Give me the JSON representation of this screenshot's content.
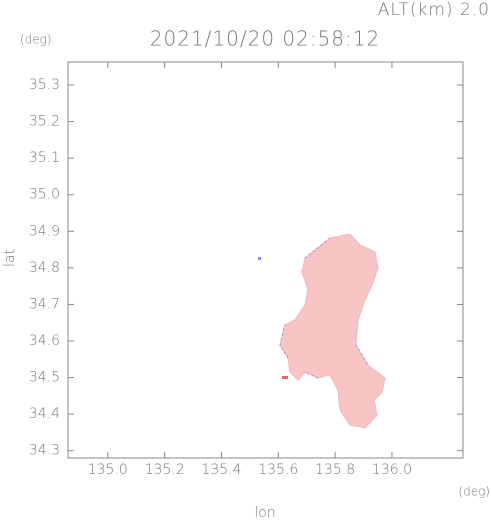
{
  "chart_data": {
    "type": "map",
    "title": "2021/10/20 02:58:12",
    "annotation": "ALT(km) 2.0",
    "y_unit": "(deg)",
    "x_unit": "(deg)",
    "xlabel": "lon",
    "ylabel": "lat",
    "xlim": [
      134.86,
      136.25
    ],
    "ylim": [
      34.28,
      35.363
    ],
    "xticks": [
      {
        "value": 135,
        "label": "135.0"
      },
      135.2,
      135.4,
      135.6,
      135.8,
      {
        "value": 136,
        "label": "136.0"
      }
    ],
    "yticks": [
      34.3,
      34.4,
      34.5,
      34.6,
      34.7,
      34.8,
      34.9,
      {
        "value": 35,
        "label": "35.0"
      },
      35.1,
      35.2,
      35.3
    ]
  }
}
